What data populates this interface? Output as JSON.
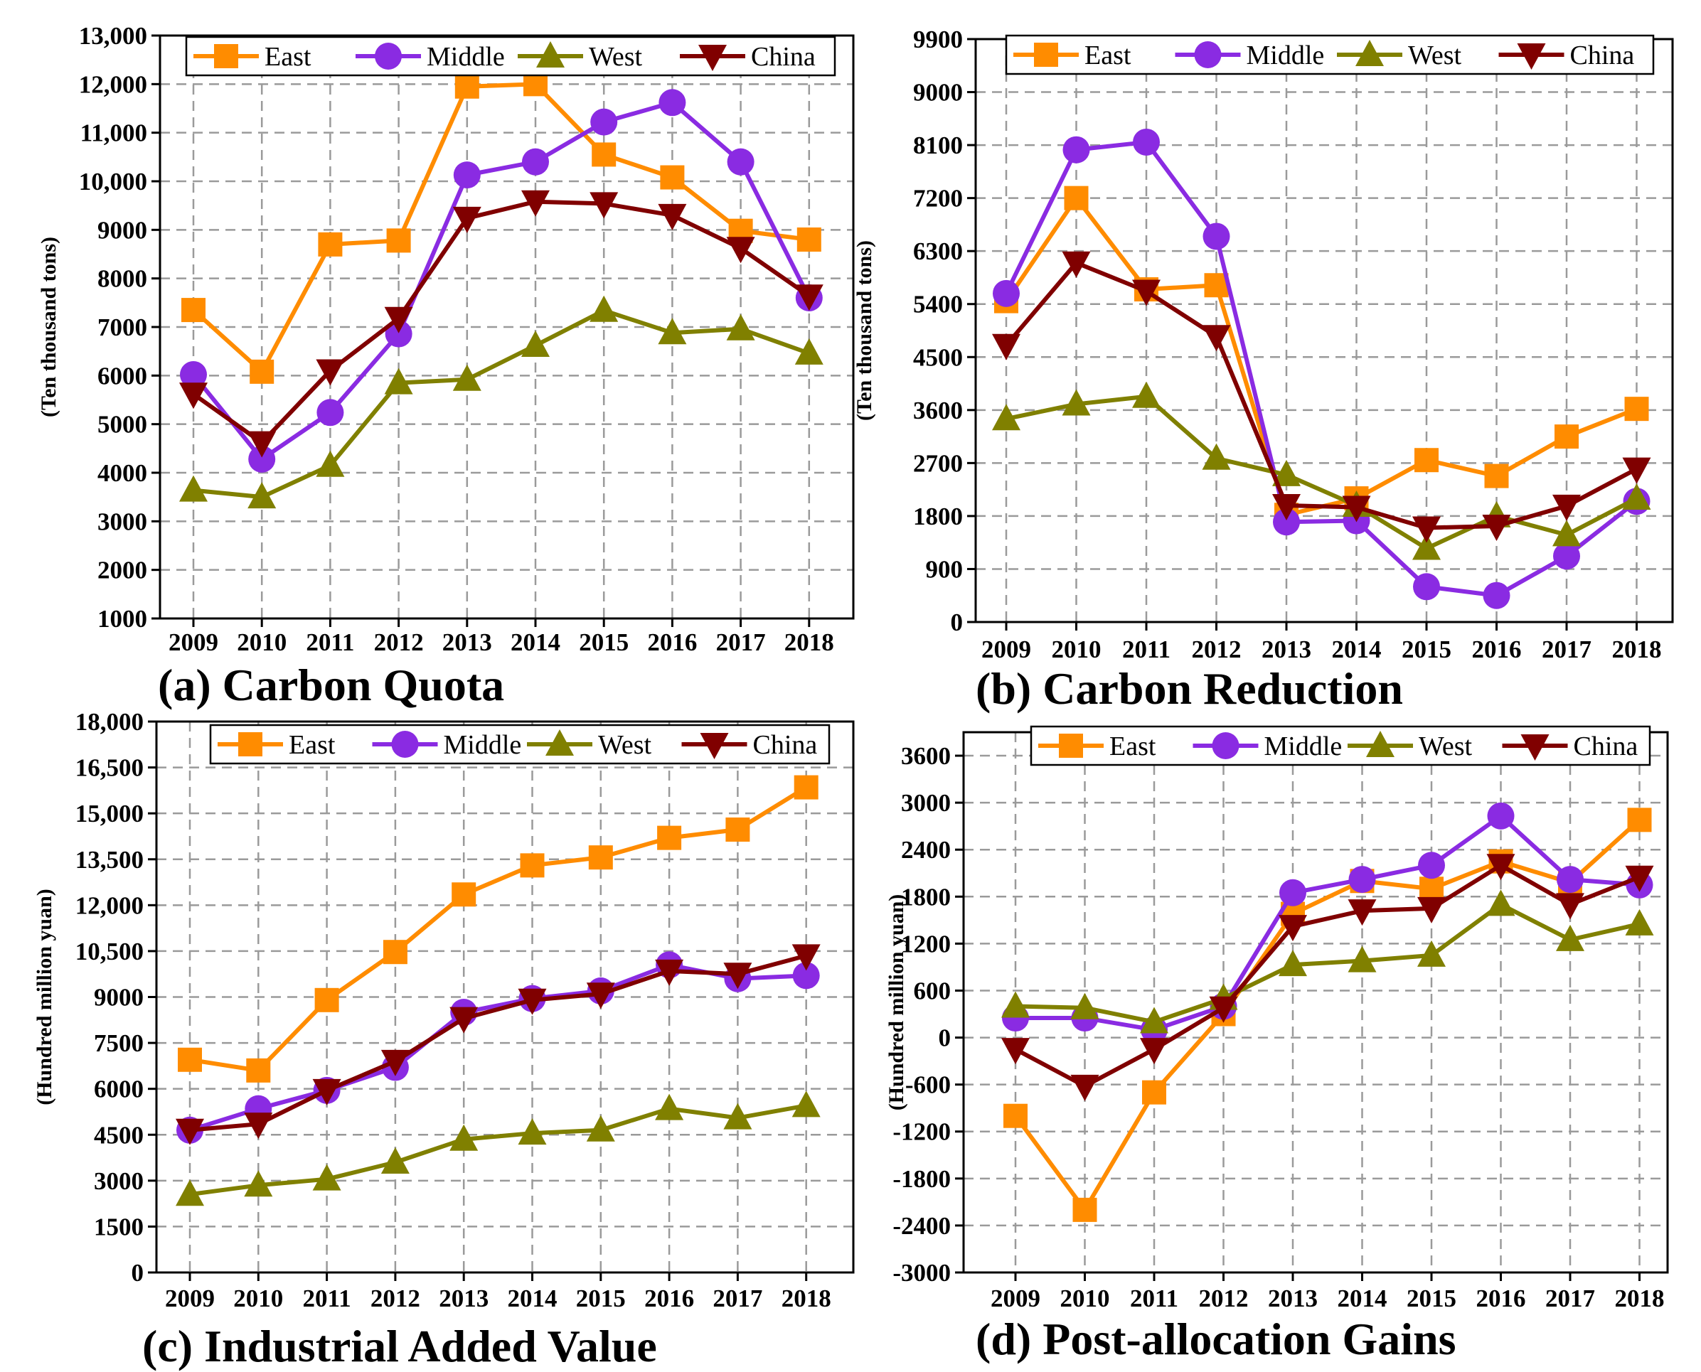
{
  "colors": {
    "East": "#ff8c00",
    "Middle": "#8a2be2",
    "West": "#808000",
    "China": "#800000",
    "grid": "#9a9a9a",
    "axis": "#000000"
  },
  "chart_data": [
    {
      "type": "line",
      "title": "(a) Carbon Quota",
      "xlabel": "",
      "ylabel": "(Ten thousand tons)",
      "categories": [
        "2009",
        "2010",
        "2011",
        "2012",
        "2013",
        "2014",
        "2015",
        "2016",
        "2017",
        "2018"
      ],
      "ylim": [
        1000,
        13000
      ],
      "yticks": [
        1000,
        2000,
        3000,
        4000,
        5000,
        6000,
        7000,
        8000,
        9000,
        10000,
        11000,
        12000,
        13000
      ],
      "ytick_labels": [
        "1000",
        "2000",
        "3000",
        "4000",
        "5000",
        "6000",
        "7000",
        "8000",
        "9000",
        "10,000",
        "11,000",
        "12,000",
        "13,000"
      ],
      "legend": [
        "East",
        "Middle",
        "West",
        "China"
      ],
      "legend_position": "top",
      "series": [
        {
          "name": "East",
          "marker": "square",
          "values": [
            7350,
            6080,
            8700,
            8780,
            11950,
            12000,
            10550,
            10080,
            8980,
            8800
          ]
        },
        {
          "name": "Middle",
          "marker": "circle",
          "values": [
            6020,
            4280,
            5240,
            6860,
            10130,
            10400,
            11220,
            11620,
            10400,
            7600
          ]
        },
        {
          "name": "West",
          "marker": "triangle-up",
          "values": [
            3640,
            3500,
            4150,
            5850,
            5920,
            6620,
            7340,
            6880,
            6960,
            6460
          ]
        },
        {
          "name": "China",
          "marker": "triangle-down",
          "values": [
            5620,
            4620,
            6100,
            7180,
            9240,
            9580,
            9540,
            9300,
            8620,
            7640
          ]
        }
      ]
    },
    {
      "type": "line",
      "title": "(b) Carbon Reduction",
      "xlabel": "",
      "ylabel": "(Ten thousand tons)",
      "categories": [
        "2009",
        "2010",
        "2011",
        "2012",
        "2013",
        "2014",
        "2015",
        "2016",
        "2017",
        "2018"
      ],
      "ylim": [
        0,
        9900
      ],
      "yticks": [
        0,
        900,
        1800,
        2700,
        3600,
        4500,
        5400,
        6300,
        7200,
        8100,
        9000,
        9900
      ],
      "ytick_labels": [
        "0",
        "900",
        "1800",
        "2700",
        "3600",
        "4500",
        "5400",
        "6300",
        "7200",
        "8100",
        "9000",
        "9900"
      ],
      "legend": [
        "East",
        "Middle",
        "West",
        "China"
      ],
      "legend_position": "top",
      "series": [
        {
          "name": "East",
          "marker": "square",
          "values": [
            5450,
            7200,
            5650,
            5720,
            1820,
            2100,
            2750,
            2480,
            3150,
            3620
          ]
        },
        {
          "name": "Middle",
          "marker": "circle",
          "values": [
            5580,
            8020,
            8150,
            6550,
            1700,
            1720,
            600,
            450,
            1120,
            2050
          ]
        },
        {
          "name": "West",
          "marker": "triangle-up",
          "values": [
            3450,
            3700,
            3830,
            2780,
            2500,
            1980,
            1250,
            1800,
            1480,
            2100
          ]
        },
        {
          "name": "China",
          "marker": "triangle-down",
          "values": [
            4700,
            6100,
            5620,
            4850,
            1980,
            1950,
            1600,
            1630,
            1970,
            2600
          ]
        }
      ]
    },
    {
      "type": "line",
      "title": "(c) Industrial Added Value",
      "xlabel": "",
      "ylabel": "(Hundred million yuan)",
      "categories": [
        "2009",
        "2010",
        "2011",
        "2012",
        "2013",
        "2014",
        "2015",
        "2016",
        "2017",
        "2018"
      ],
      "ylim": [
        0,
        18000
      ],
      "yticks": [
        0,
        1500,
        3000,
        4500,
        6000,
        7500,
        9000,
        10500,
        12000,
        13500,
        15000,
        16500,
        18000
      ],
      "ytick_labels": [
        "0",
        "1500",
        "3000",
        "4500",
        "6000",
        "7500",
        "9000",
        "10,500",
        "12,000",
        "13,500",
        "15,000",
        "16,500",
        "18,000"
      ],
      "legend": [
        "East",
        "Middle",
        "West",
        "China"
      ],
      "legend_position": "top",
      "series": [
        {
          "name": "East",
          "marker": "square",
          "values": [
            6950,
            6600,
            8900,
            10470,
            12350,
            13300,
            13560,
            14200,
            14470,
            15850
          ]
        },
        {
          "name": "Middle",
          "marker": "circle",
          "values": [
            4650,
            5350,
            5950,
            6700,
            8500,
            8950,
            9200,
            10050,
            9600,
            9700
          ]
        },
        {
          "name": "West",
          "marker": "triangle-up",
          "values": [
            2550,
            2850,
            3050,
            3600,
            4350,
            4550,
            4650,
            5350,
            5050,
            5450
          ]
        },
        {
          "name": "China",
          "marker": "triangle-down",
          "values": [
            4650,
            4850,
            5950,
            6900,
            8300,
            8900,
            9100,
            9850,
            9750,
            10350
          ]
        }
      ]
    },
    {
      "type": "line",
      "title": "(d) Post-allocation Gains",
      "xlabel": "",
      "ylabel": "(Hundred million yuan)",
      "categories": [
        "2009",
        "2010",
        "2011",
        "2012",
        "2013",
        "2014",
        "2015",
        "2016",
        "2017",
        "2018"
      ],
      "ylim": [
        -3000,
        3900
      ],
      "yticks": [
        -3000,
        -2400,
        -1800,
        -1200,
        -600,
        0,
        600,
        1200,
        1800,
        2400,
        3000,
        3600
      ],
      "ytick_labels": [
        "-3000",
        "-2400",
        "-1800",
        "-1200",
        "-600",
        "0",
        "600",
        "1200",
        "1800",
        "2400",
        "3000",
        "3600"
      ],
      "legend": [
        "East",
        "Middle",
        "West",
        "China"
      ],
      "legend_position": "top",
      "series": [
        {
          "name": "East",
          "marker": "square",
          "values": [
            -1000,
            -2200,
            -700,
            300,
            1580,
            2000,
            1900,
            2250,
            1980,
            2780
          ]
        },
        {
          "name": "Middle",
          "marker": "circle",
          "values": [
            250,
            250,
            100,
            400,
            1850,
            2020,
            2200,
            2830,
            2020,
            1950
          ]
        },
        {
          "name": "West",
          "marker": "triangle-up",
          "values": [
            400,
            380,
            200,
            500,
            930,
            980,
            1050,
            1700,
            1250,
            1450
          ]
        },
        {
          "name": "China",
          "marker": "triangle-down",
          "values": [
            -150,
            -620,
            -150,
            380,
            1420,
            1620,
            1650,
            2200,
            1700,
            2050
          ]
        }
      ]
    }
  ]
}
